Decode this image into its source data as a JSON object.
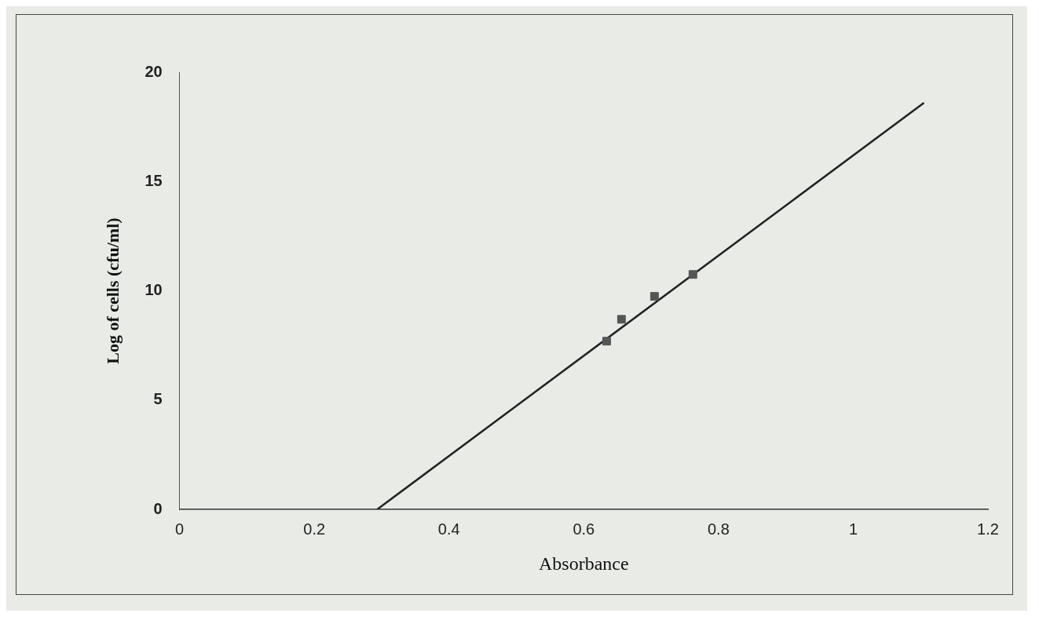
{
  "chart_data": {
    "type": "scatter",
    "xlabel": "Absorbance",
    "ylabel": "Log of cells (cfu/ml)",
    "xlim": [
      0,
      1.2
    ],
    "xticks": [
      0,
      0.2,
      0.4,
      0.6,
      0.8,
      1,
      1.2
    ],
    "ylim": [
      0,
      20
    ],
    "yticks": [
      0,
      5,
      10,
      15,
      20
    ],
    "grid": false,
    "legend": false,
    "marker": "square",
    "series": [
      {
        "type": "scatter",
        "color": "#555555",
        "x": [
          0.634,
          0.656,
          0.705,
          0.762
        ],
        "values": [
          7.7,
          8.7,
          9.75,
          10.75
        ]
      },
      {
        "type": "line",
        "color": "#222222",
        "x": [
          0.293,
          1.105
        ],
        "values": [
          0,
          18.6
        ],
        "marker": "none",
        "line_style": "solid"
      }
    ]
  }
}
